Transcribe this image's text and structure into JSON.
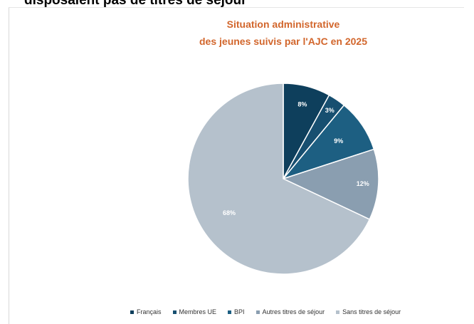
{
  "page": {
    "heading": "disposaient pas de titres de séjour"
  },
  "chart_data": {
    "type": "pie",
    "title": "Situation administrative",
    "subtitle": "des jeunes suivis par l'AJC en 2025",
    "categories": [
      "Français",
      "Membres UE",
      "BPI",
      "Autres titres de séjour",
      "Sans titres de séjour"
    ],
    "values": [
      8,
      3,
      9,
      12,
      68
    ],
    "labels": [
      "8%",
      "3%",
      "9%",
      "12%",
      "68%"
    ],
    "colors": [
      "#0e3f5c",
      "#174f70",
      "#1d5f82",
      "#8a9eb0",
      "#b5c1cc"
    ],
    "legend_position": "bottom"
  }
}
